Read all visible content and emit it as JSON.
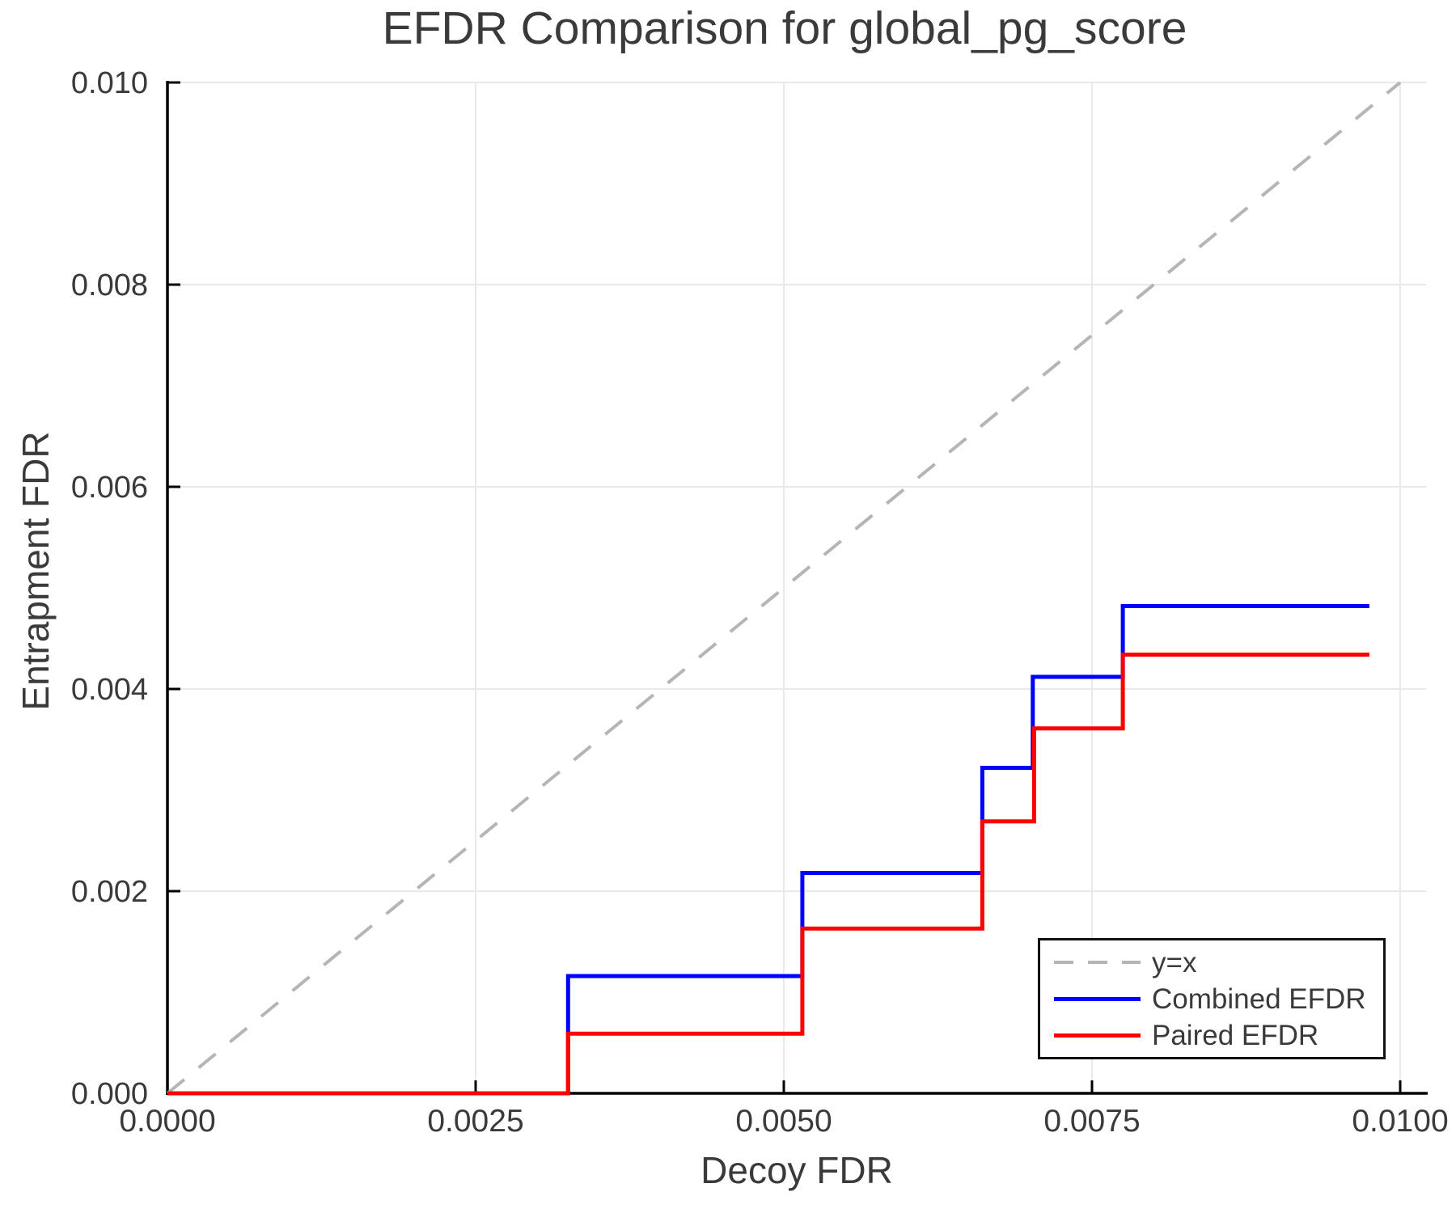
{
  "title": "EFDR Comparison for global_pg_score",
  "xlabel": "Decoy FDR",
  "ylabel": "Entrapment FDR",
  "colors": {
    "axis": "#000000",
    "grid": "#e9e9e9",
    "text": "#3a3a3a",
    "legend_border": "#111111",
    "combined_efdr": "#0000ff",
    "paired_efdr": "#ff0000",
    "identity_line": "#b5b5b5"
  },
  "chart_data": {
    "type": "line",
    "title": "EFDR Comparison for global_pg_score",
    "xlabel": "Decoy FDR",
    "ylabel": "Entrapment FDR",
    "xlim": [
      0,
      0.0102
    ],
    "ylim": [
      0,
      0.01
    ],
    "grid": true,
    "legend_position": "lower right",
    "xticks": {
      "values": [
        0,
        0.0025,
        0.005,
        0.0075,
        0.01
      ],
      "labels": [
        "0.0000",
        "0.0025",
        "0.0050",
        "0.0075",
        "0.0100"
      ]
    },
    "yticks": {
      "values": [
        0,
        0.002,
        0.004,
        0.006,
        0.008,
        0.01
      ],
      "labels": [
        "0.000",
        "0.002",
        "0.004",
        "0.006",
        "0.008",
        "0.010"
      ]
    },
    "series": [
      {
        "name": "y=x",
        "style": "dashed",
        "color": "#b5b5b5",
        "width": 4,
        "points": [
          [
            0,
            0
          ],
          [
            0.01,
            0.01
          ]
        ]
      },
      {
        "name": "Combined EFDR",
        "style": "solid",
        "color": "#0000ff",
        "width": 5,
        "points": [
          [
            0,
            0
          ],
          [
            0.00325,
            0
          ],
          [
            0.00325,
            0.00116
          ],
          [
            0.00515,
            0.00116
          ],
          [
            0.00515,
            0.00218
          ],
          [
            0.00661,
            0.00218
          ],
          [
            0.00661,
            0.00322
          ],
          [
            0.00702,
            0.00322
          ],
          [
            0.00702,
            0.00412
          ],
          [
            0.00775,
            0.00412
          ],
          [
            0.00775,
            0.00482
          ],
          [
            0.00975,
            0.00482
          ]
        ]
      },
      {
        "name": "Paired EFDR",
        "style": "solid",
        "color": "#ff0000",
        "width": 5,
        "points": [
          [
            0,
            0
          ],
          [
            0.00325,
            0
          ],
          [
            0.00325,
            0.00059
          ],
          [
            0.00515,
            0.00059
          ],
          [
            0.00515,
            0.00163
          ],
          [
            0.00661,
            0.00163
          ],
          [
            0.00661,
            0.00269
          ],
          [
            0.00703,
            0.00269
          ],
          [
            0.00703,
            0.00361
          ],
          [
            0.00775,
            0.00361
          ],
          [
            0.00775,
            0.00434
          ],
          [
            0.00975,
            0.00434
          ]
        ]
      }
    ]
  }
}
